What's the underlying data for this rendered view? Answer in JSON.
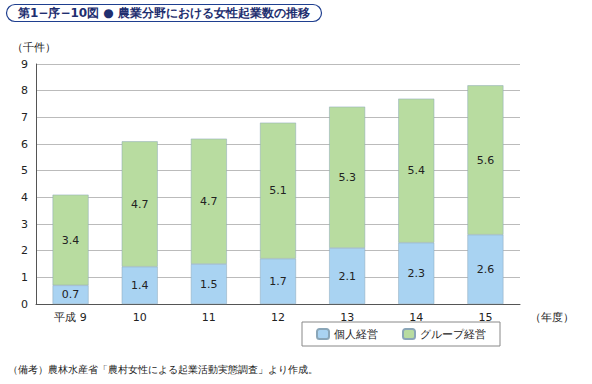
{
  "chart_data": {
    "type": "bar",
    "title": "第1−序−10図 ● 農業分野における女性起業数の推移",
    "y_label": "（千件）",
    "x_label": "（年度）",
    "note": "（備考）農林水産省「農村女性による起業活動実態調査」より作成。",
    "categories": [
      "平成 9",
      "10",
      "11",
      "12",
      "13",
      "14",
      "15"
    ],
    "series": [
      {
        "name": "個人経営",
        "color": "#a9d3f2",
        "values": [
          0.7,
          1.4,
          1.5,
          1.7,
          2.1,
          2.3,
          2.6
        ]
      },
      {
        "name": "グループ経営",
        "color": "#b8dca0",
        "values": [
          3.4,
          4.7,
          4.7,
          5.1,
          5.3,
          5.4,
          5.6
        ]
      }
    ],
    "stacked": true,
    "data_labels": true,
    "ylim": [
      0,
      9
    ],
    "yticks": [
      0,
      1,
      2,
      3,
      4,
      5,
      6,
      7,
      8,
      9
    ],
    "grid": true,
    "legend": "bottom right"
  }
}
